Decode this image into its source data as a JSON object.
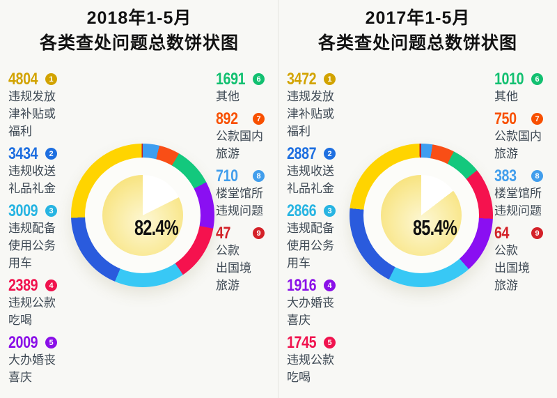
{
  "panels": [
    {
      "title_line1": "2018年1-5月",
      "title_line2": "各类查处问题总数饼状图",
      "center_label": "82.4%",
      "legend_left": [
        {
          "value": "4804",
          "rank": "1",
          "color": "#D2A300",
          "label_lines": [
            "违规发放",
            "津补贴或",
            "福利"
          ]
        },
        {
          "value": "3434",
          "rank": "2",
          "color": "#1E6FE0",
          "label_lines": [
            "违规收送",
            "礼品礼金"
          ]
        },
        {
          "value": "3009",
          "rank": "3",
          "color": "#27B4E2",
          "label_lines": [
            "违规配备",
            "使用公务",
            "用车"
          ]
        },
        {
          "value": "2389",
          "rank": "4",
          "color": "#F0134E",
          "label_lines": [
            "违规公款",
            "吃喝"
          ]
        },
        {
          "value": "2009",
          "rank": "5",
          "color": "#8A10E8",
          "label_lines": [
            "大办婚丧",
            "喜庆"
          ]
        }
      ],
      "legend_right": [
        {
          "value": "1691",
          "rank": "6",
          "color": "#12C070",
          "label_lines": [
            "其他"
          ]
        },
        {
          "value": "892",
          "rank": "7",
          "color": "#F85000",
          "label_lines": [
            "公款国内",
            "旅游"
          ]
        },
        {
          "value": "710",
          "rank": "8",
          "color": "#429EEC",
          "label_lines": [
            "楼堂馆所",
            "违规问题"
          ]
        },
        {
          "value": "47",
          "rank": "9",
          "color": "#D42128",
          "label_lines": [
            "公款",
            "出国境",
            "旅游"
          ]
        }
      ]
    },
    {
      "title_line1": "2017年1-5月",
      "title_line2": "各类查处问题总数饼状图",
      "center_label": "85.4%",
      "legend_left": [
        {
          "value": "3472",
          "rank": "1",
          "color": "#D2A300",
          "label_lines": [
            "违规发放",
            "津补贴或",
            "福利"
          ]
        },
        {
          "value": "2887",
          "rank": "2",
          "color": "#1E6FE0",
          "label_lines": [
            "违规收送",
            "礼品礼金"
          ]
        },
        {
          "value": "2866",
          "rank": "3",
          "color": "#27B4E2",
          "label_lines": [
            "违规配备",
            "使用公务",
            "用车"
          ]
        },
        {
          "value": "1916",
          "rank": "4",
          "color": "#8A10E8",
          "label_lines": [
            "大办婚丧",
            "喜庆"
          ]
        },
        {
          "value": "1745",
          "rank": "5",
          "color": "#F0134E",
          "label_lines": [
            "违规公款",
            "吃喝"
          ]
        }
      ],
      "legend_right": [
        {
          "value": "1010",
          "rank": "6",
          "color": "#12C070",
          "label_lines": [
            "其他"
          ]
        },
        {
          "value": "750",
          "rank": "7",
          "color": "#F85000",
          "label_lines": [
            "公款国内",
            "旅游"
          ]
        },
        {
          "value": "383",
          "rank": "8",
          "color": "#429EEC",
          "label_lines": [
            "楼堂馆所",
            "违规问题"
          ]
        },
        {
          "value": "64",
          "rank": "9",
          "color": "#D42128",
          "label_lines": [
            "公款",
            "出国境",
            "旅游"
          ]
        }
      ]
    }
  ],
  "chart_data": [
    {
      "type": "pie",
      "title": "2018年1-5月各类查处问题总数饼状图",
      "center_text": "82.4%",
      "categories": [
        "违规发放津补贴或福利",
        "违规收送礼品礼金",
        "违规配备使用公务用车",
        "违规公款吃喝",
        "大办婚丧喜庆",
        "其他",
        "公款国内旅游",
        "楼堂馆所违规问题",
        "公款出国境旅游"
      ],
      "values": [
        4804,
        3434,
        3009,
        2389,
        2009,
        1691,
        892,
        710,
        47
      ],
      "colors": [
        "#FFD400",
        "#2A5BDD",
        "#38C8F5",
        "#F5124E",
        "#8A0FF2",
        "#13C87D",
        "#F94E16",
        "#3E9EF0",
        "#C02028"
      ],
      "ring_clockwise_from_top_ranks": [
        8,
        7,
        6,
        5,
        4,
        3,
        2,
        1,
        9
      ],
      "inner_white_wedge_percent": 17.6,
      "legend_position": "both-sides",
      "grid": false
    },
    {
      "type": "pie",
      "title": "2017年1-5月各类查处问题总数饼状图",
      "center_text": "85.4%",
      "categories": [
        "违规发放津补贴或福利",
        "违规收送礼品礼金",
        "违规配备使用公务用车",
        "大办婚丧喜庆",
        "违规公款吃喝",
        "其他",
        "公款国内旅游",
        "楼堂馆所违规问题",
        "公款出国境旅游"
      ],
      "values": [
        3472,
        2887,
        2866,
        1916,
        1745,
        1010,
        750,
        383,
        64
      ],
      "colors": [
        "#FFD400",
        "#2A5BDD",
        "#38C8F5",
        "#8A0FF2",
        "#F5124E",
        "#13C87D",
        "#F94E16",
        "#3E9EF0",
        "#C02028"
      ],
      "ring_clockwise_from_top_ranks": [
        8,
        7,
        6,
        5,
        4,
        3,
        2,
        1,
        9
      ],
      "inner_white_wedge_percent": 14.6,
      "legend_position": "both-sides",
      "grid": false
    }
  ],
  "inner_gradient": {
    "center": "#FDF7D4",
    "mid": "#FAECA2",
    "edge": "#F6DC64"
  }
}
